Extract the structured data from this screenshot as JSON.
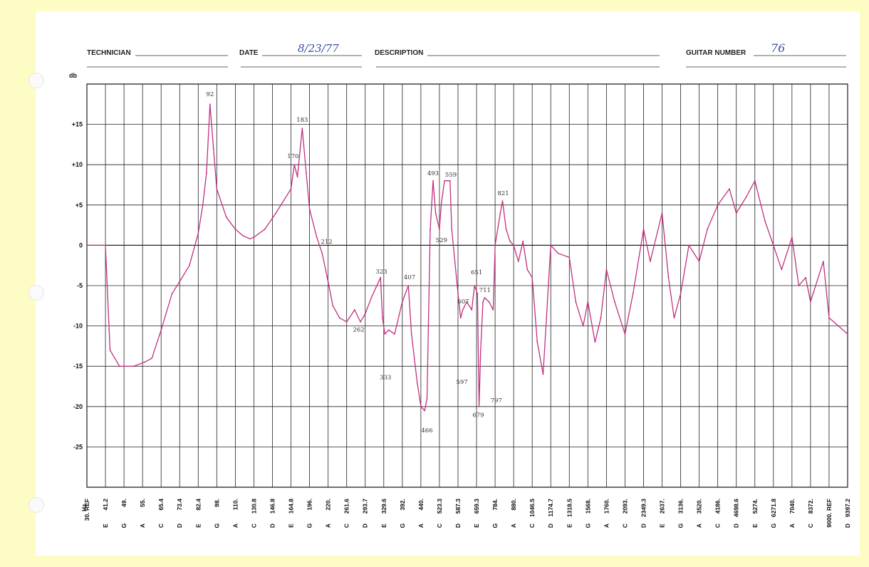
{
  "header": {
    "technician_label": "TECHNICIAN",
    "technician_value": "",
    "date_label": "DATE",
    "date_value": "8/23/77",
    "description_label": "DESCRIPTION",
    "description_value": "",
    "guitar_number_label": "GUITAR NUMBER",
    "guitar_number_value": "76"
  },
  "chart_data": {
    "type": "line",
    "title": "",
    "ylabel": "db",
    "xlabel": "Hz",
    "ylim": [
      -30,
      20
    ],
    "yticks": [
      {
        "v": 15,
        "label": "+15"
      },
      {
        "v": 10,
        "label": "+10"
      },
      {
        "v": 5,
        "label": "+5"
      },
      {
        "v": 0,
        "label": "0"
      },
      {
        "v": -5,
        "label": "-5"
      },
      {
        "v": -10,
        "label": "-10"
      },
      {
        "v": -15,
        "label": "-15"
      },
      {
        "v": -20,
        "label": "-20"
      },
      {
        "v": -25,
        "label": "-25"
      }
    ],
    "xlim": [
      30,
      9397.2
    ],
    "x_scale": "log",
    "xticks": [
      {
        "note": "",
        "freq": "30. REF",
        "hz": 30
      },
      {
        "note": "E",
        "freq": "41.2",
        "hz": 41.2
      },
      {
        "note": "G",
        "freq": "49.",
        "hz": 49
      },
      {
        "note": "A",
        "freq": "55.",
        "hz": 55
      },
      {
        "note": "C",
        "freq": "65.4",
        "hz": 65.4
      },
      {
        "note": "D",
        "freq": "73.4",
        "hz": 73.4
      },
      {
        "note": "E",
        "freq": "82.4",
        "hz": 82.4
      },
      {
        "note": "G",
        "freq": "98.",
        "hz": 98
      },
      {
        "note": "A",
        "freq": "110.",
        "hz": 110
      },
      {
        "note": "C",
        "freq": "130.8",
        "hz": 130.8
      },
      {
        "note": "D",
        "freq": "146.8",
        "hz": 146.8
      },
      {
        "note": "E",
        "freq": "164.8",
        "hz": 164.8
      },
      {
        "note": "G",
        "freq": "196.",
        "hz": 196
      },
      {
        "note": "A",
        "freq": "220.",
        "hz": 220
      },
      {
        "note": "C",
        "freq": "261.6",
        "hz": 261.6
      },
      {
        "note": "D",
        "freq": "293.7",
        "hz": 293.7
      },
      {
        "note": "E",
        "freq": "329.6",
        "hz": 329.6
      },
      {
        "note": "G",
        "freq": "392.",
        "hz": 392
      },
      {
        "note": "A",
        "freq": "440.",
        "hz": 440
      },
      {
        "note": "C",
        "freq": "523.3",
        "hz": 523.3
      },
      {
        "note": "D",
        "freq": "587.3",
        "hz": 587.3
      },
      {
        "note": "E",
        "freq": "659.3",
        "hz": 659.3
      },
      {
        "note": "G",
        "freq": "784.",
        "hz": 784
      },
      {
        "note": "A",
        "freq": "880.",
        "hz": 880
      },
      {
        "note": "C",
        "freq": "1046.5",
        "hz": 1046.5
      },
      {
        "note": "D",
        "freq": "1174.7",
        "hz": 1174.7
      },
      {
        "note": "E",
        "freq": "1318.5",
        "hz": 1318.5
      },
      {
        "note": "G",
        "freq": "1568.",
        "hz": 1568
      },
      {
        "note": "A",
        "freq": "1760.",
        "hz": 1760
      },
      {
        "note": "C",
        "freq": "2093.",
        "hz": 2093
      },
      {
        "note": "D",
        "freq": "2349.3",
        "hz": 2349.3
      },
      {
        "note": "E",
        "freq": "2637.",
        "hz": 2637
      },
      {
        "note": "G",
        "freq": "3136.",
        "hz": 3136
      },
      {
        "note": "A",
        "freq": "3520.",
        "hz": 3520
      },
      {
        "note": "C",
        "freq": "4186.",
        "hz": 4186
      },
      {
        "note": "D",
        "freq": "4698.6",
        "hz": 4698.6
      },
      {
        "note": "E",
        "freq": "5274.",
        "hz": 5274
      },
      {
        "note": "G",
        "freq": "6271.8",
        "hz": 6271.8
      },
      {
        "note": "A",
        "freq": "7040.",
        "hz": 7040
      },
      {
        "note": "C",
        "freq": "8372.",
        "hz": 8372
      },
      {
        "note": "",
        "freq": "9000. REF",
        "hz": 9000
      },
      {
        "note": "D",
        "freq": "9397.2",
        "hz": 9397.2
      }
    ],
    "series": [
      {
        "color": "#c0307f",
        "points": [
          [
            30,
            0
          ],
          [
            41.2,
            0
          ],
          [
            43,
            -13
          ],
          [
            47,
            -15
          ],
          [
            52,
            -15
          ],
          [
            56,
            -14.5
          ],
          [
            60,
            -14
          ],
          [
            65.4,
            -10.5
          ],
          [
            70,
            -6
          ],
          [
            73.4,
            -4.5
          ],
          [
            78,
            -2.5
          ],
          [
            82.4,
            1.5
          ],
          [
            86,
            5
          ],
          [
            89,
            9
          ],
          [
            92,
            17.5
          ],
          [
            95,
            12
          ],
          [
            98,
            7
          ],
          [
            104,
            3.5
          ],
          [
            110,
            2
          ],
          [
            118,
            1.2
          ],
          [
            126,
            0.8
          ],
          [
            130.8,
            1
          ],
          [
            140,
            2
          ],
          [
            150,
            4
          ],
          [
            164.8,
            7
          ],
          [
            170,
            10
          ],
          [
            175,
            8.5
          ],
          [
            183,
            14.5
          ],
          [
            190,
            9
          ],
          [
            196,
            4.5
          ],
          [
            205,
            1
          ],
          [
            212,
            -1
          ],
          [
            220,
            -4.5
          ],
          [
            230,
            -7.5
          ],
          [
            245,
            -9
          ],
          [
            261.6,
            -9.5
          ],
          [
            275,
            -8
          ],
          [
            285,
            -9.5
          ],
          [
            293.7,
            -8.5
          ],
          [
            305,
            -6.5
          ],
          [
            323,
            -4
          ],
          [
            327,
            -9
          ],
          [
            333,
            -11
          ],
          [
            345,
            -10.5
          ],
          [
            365,
            -11
          ],
          [
            392,
            -7
          ],
          [
            407,
            -5
          ],
          [
            415,
            -11
          ],
          [
            430,
            -17
          ],
          [
            440,
            -20
          ],
          [
            456,
            -20.5
          ],
          [
            466,
            -19
          ],
          [
            480,
            2
          ],
          [
            493,
            8
          ],
          [
            505,
            4
          ],
          [
            523.3,
            2
          ],
          [
            529,
            5
          ],
          [
            540,
            8
          ],
          [
            559,
            8
          ],
          [
            565,
            2
          ],
          [
            587.3,
            -6
          ],
          [
            597,
            -9
          ],
          [
            605,
            -8
          ],
          [
            620,
            -7
          ],
          [
            640,
            -8
          ],
          [
            651,
            -5
          ],
          [
            665,
            -6
          ],
          [
            675,
            -20
          ],
          [
            685,
            -13
          ],
          [
            700,
            -7
          ],
          [
            711,
            -6.5
          ],
          [
            740,
            -7
          ],
          [
            770,
            -8
          ],
          [
            784,
            0
          ],
          [
            810,
            4
          ],
          [
            821,
            5.5
          ],
          [
            840,
            2
          ],
          [
            860,
            0.5
          ],
          [
            880,
            0
          ],
          [
            920,
            -2
          ],
          [
            960,
            0.5
          ],
          [
            1000,
            -3
          ],
          [
            1046.5,
            -4
          ],
          [
            1080,
            -12
          ],
          [
            1120,
            -16
          ],
          [
            1174.7,
            0
          ],
          [
            1230,
            -1
          ],
          [
            1318.5,
            -1.5
          ],
          [
            1400,
            -7
          ],
          [
            1500,
            -10
          ],
          [
            1568,
            -7
          ],
          [
            1640,
            -12
          ],
          [
            1700,
            -9
          ],
          [
            1760,
            -3
          ],
          [
            1900,
            -7
          ],
          [
            2093,
            -11
          ],
          [
            2200,
            -6
          ],
          [
            2349.3,
            2
          ],
          [
            2450,
            -2
          ],
          [
            2637,
            4
          ],
          [
            2800,
            -4
          ],
          [
            2950,
            -9
          ],
          [
            3136,
            -6
          ],
          [
            3300,
            0
          ],
          [
            3520,
            -2
          ],
          [
            3800,
            2
          ],
          [
            4186,
            5
          ],
          [
            4500,
            7
          ],
          [
            4698.6,
            4
          ],
          [
            5000,
            6
          ],
          [
            5274,
            8
          ],
          [
            5800,
            3
          ],
          [
            6271.8,
            0
          ],
          [
            6600,
            -3
          ],
          [
            7040,
            1
          ],
          [
            7500,
            -5
          ],
          [
            8000,
            -4
          ],
          [
            8372,
            -7
          ],
          [
            8800,
            -2
          ],
          [
            9000,
            -9
          ],
          [
            9397.2,
            -11
          ]
        ]
      }
    ],
    "annotations": [
      {
        "text": "92",
        "x": 92,
        "y": 18.5
      },
      {
        "text": "183",
        "x": 183,
        "y": 15.3
      },
      {
        "text": "170",
        "x": 168,
        "y": 10.8
      },
      {
        "text": "212",
        "x": 218,
        "y": 0.2
      },
      {
        "text": "323",
        "x": 325,
        "y": -3.5
      },
      {
        "text": "407",
        "x": 410,
        "y": -4.2
      },
      {
        "text": "493",
        "x": 493,
        "y": 8.7
      },
      {
        "text": "559",
        "x": 562,
        "y": 8.5
      },
      {
        "text": "529",
        "x": 530,
        "y": 0.4
      },
      {
        "text": "821",
        "x": 825,
        "y": 6.2
      },
      {
        "text": "651",
        "x": 660,
        "y": -3.6
      },
      {
        "text": "711",
        "x": 713,
        "y": -5.8
      },
      {
        "text": "607",
        "x": 607,
        "y": -7.2
      },
      {
        "text": "262",
        "x": 282,
        "y": -10.7
      },
      {
        "text": "333",
        "x": 335,
        "y": -16.6
      },
      {
        "text": "597",
        "x": 602,
        "y": -17.2
      },
      {
        "text": "679",
        "x": 670,
        "y": -21.3
      },
      {
        "text": "797",
        "x": 790,
        "y": -19.5
      },
      {
        "text": "466",
        "x": 466,
        "y": -23.2
      }
    ]
  }
}
